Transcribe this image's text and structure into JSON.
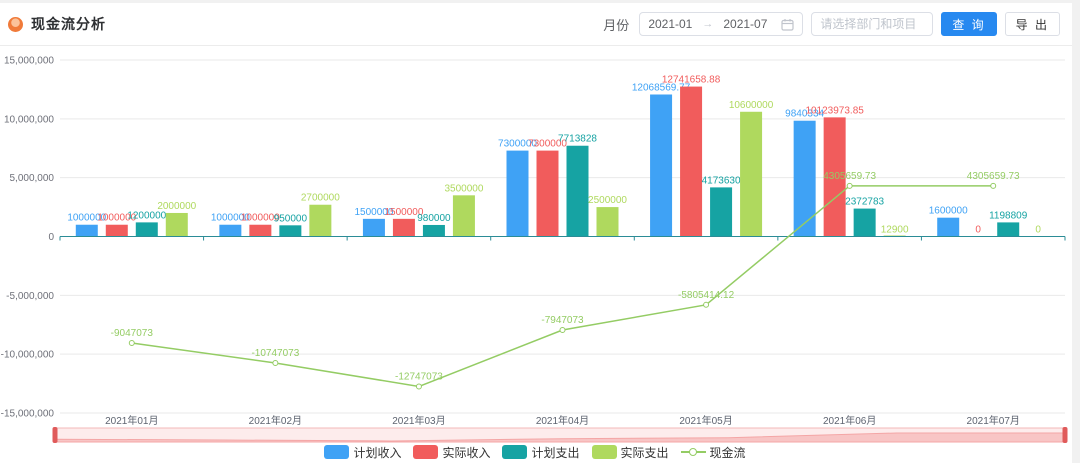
{
  "header": {
    "title": "现金流分析",
    "month_label": "月份",
    "date_start": "2021-01",
    "date_separator": "→",
    "date_end": "2021-07",
    "project_placeholder": "请选择部门和项目",
    "query_button": "查 询",
    "export_button": "导 出",
    "primary_color": "#2789f0"
  },
  "chart_data": {
    "type": "bar",
    "subtype": "grouped bars with line overlay",
    "title": "现金流分析",
    "categories": [
      "2021年01月",
      "2021年02月",
      "2021年03月",
      "2021年04月",
      "2021年05月",
      "2021年06月",
      "2021年07月"
    ],
    "series": [
      {
        "key": "planned-income",
        "name": "计划收入",
        "type": "bar",
        "color": "#3fa2f5",
        "values": [
          1000000,
          1000000,
          1500000,
          7300000,
          12068569.77,
          9840334,
          1600000
        ],
        "labels": [
          "1000000",
          "1000000",
          "1500000",
          "7300000",
          "12068569.77",
          "9840334",
          "1600000"
        ]
      },
      {
        "key": "actual-income",
        "name": "实际收入",
        "type": "bar",
        "color": "#f15c5c",
        "values": [
          1000000,
          1000000,
          1500000,
          7300000,
          12741658.88,
          10123973.85,
          0
        ],
        "labels": [
          "1000000",
          "1000000",
          "1500000",
          "7300000",
          "12741658.88",
          "10123973.85",
          "0"
        ]
      },
      {
        "key": "planned-expense",
        "name": "计划支出",
        "type": "bar",
        "color": "#16a3a3",
        "values": [
          1200000,
          950000,
          980000,
          7713828,
          4173630,
          2372783,
          1198809
        ],
        "labels": [
          "1200000",
          "950000",
          "980000",
          "7713828",
          "4173630",
          "2372783",
          "1198809"
        ]
      },
      {
        "key": "actual-expense",
        "name": "实际支出",
        "type": "bar",
        "color": "#afd95e",
        "values": [
          2000000,
          2700000,
          3500000,
          2500000,
          10600000,
          12900,
          0
        ],
        "labels": [
          "2000000",
          "2700000",
          "3500000",
          "2500000",
          "10600000",
          "12900",
          "0"
        ]
      },
      {
        "key": "cashflow",
        "name": "现金流",
        "type": "line",
        "color": "#94cc64",
        "values": [
          -9047073,
          -10747073,
          -12747073,
          -7947073,
          -5805414.12,
          4305659.73,
          4305659.73
        ],
        "labels": [
          "-9047073",
          "-10747073",
          "-12747073",
          "-7947073",
          "-5805414.12",
          "4305659.73",
          "4305659.73"
        ]
      }
    ],
    "ylim": [
      -15000000,
      15000000
    ],
    "y_ticks": [
      {
        "value": 15000000,
        "label": "15,000,000"
      },
      {
        "value": 10000000,
        "label": "10,000,000"
      },
      {
        "value": 5000000,
        "label": "5,000,000"
      },
      {
        "value": 0,
        "label": "0"
      },
      {
        "value": -5000000,
        "label": "-5,000,000"
      },
      {
        "value": -10000000,
        "label": "-10,000,000"
      },
      {
        "value": -15000000,
        "label": "-15,000,000"
      }
    ],
    "grid": true,
    "legend_position": "bottom",
    "axis_line_color": "#2b8c96",
    "datazoom": {
      "fill": "#fdecec",
      "border": "#f3b9b9",
      "wave": "#f4a6a6",
      "handle": "#e05a5a"
    }
  }
}
